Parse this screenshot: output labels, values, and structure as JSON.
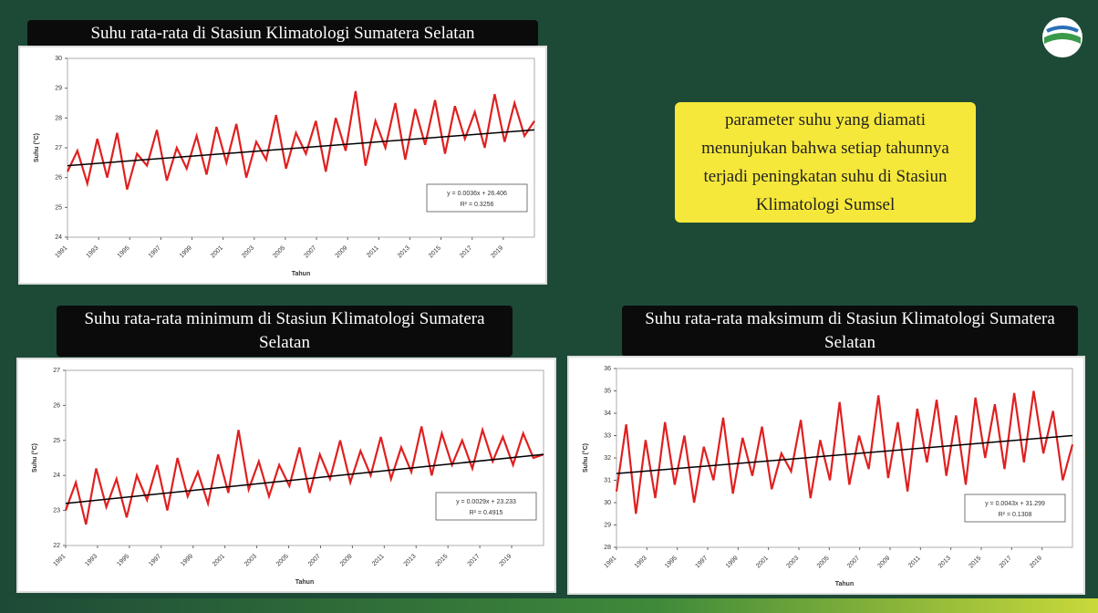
{
  "chart_data": [
    {
      "type": "line",
      "title": "Suhu rata-rata di Stasiun Klimatologi Sumatera Selatan",
      "ylabel": "Suhu (°C)",
      "xlabel": "Tahun",
      "color": "#e02020",
      "trend_color": "#000000",
      "trend": [
        26.4,
        27.6
      ],
      "equation": "y = 0.0036x + 26.406",
      "r2": "R² = 0.3256",
      "ylim": [
        24,
        30
      ],
      "yticks": [
        24,
        25,
        26,
        27,
        28,
        29,
        30
      ],
      "xlim": [
        1991,
        2021
      ],
      "xticks": [
        1991,
        1993,
        1995,
        1997,
        1999,
        2001,
        2003,
        2005,
        2007,
        2009,
        2011,
        2013,
        2015,
        2017,
        2019
      ],
      "values": [
        26.2,
        26.9,
        25.8,
        27.3,
        26.0,
        27.5,
        25.6,
        26.8,
        26.4,
        27.6,
        25.9,
        27.0,
        26.3,
        27.4,
        26.1,
        27.7,
        26.5,
        27.8,
        26.0,
        27.2,
        26.6,
        28.1,
        26.3,
        27.5,
        26.8,
        27.9,
        26.2,
        28.0,
        26.9,
        28.9,
        26.4,
        27.9,
        27.0,
        28.5,
        26.6,
        28.3,
        27.1,
        28.6,
        26.8,
        28.4,
        27.3,
        28.2,
        27.0,
        28.8,
        27.2,
        28.5,
        27.4,
        27.9
      ]
    },
    {
      "type": "line",
      "title": "Suhu rata-rata minimum di Stasiun Klimatologi Sumatera Selatan",
      "ylabel": "Suhu (°C)",
      "xlabel": "Tahun",
      "color": "#e02020",
      "trend_color": "#000000",
      "trend": [
        23.2,
        24.6
      ],
      "equation": "y = 0.0029x + 23.233",
      "r2": "R² = 0.4915",
      "ylim": [
        22,
        27
      ],
      "yticks": [
        22,
        23,
        24,
        25,
        26,
        27
      ],
      "xlim": [
        1991,
        2021
      ],
      "xticks": [
        1991,
        1993,
        1995,
        1997,
        1999,
        2001,
        2003,
        2005,
        2007,
        2009,
        2011,
        2013,
        2015,
        2017,
        2019
      ],
      "values": [
        23.0,
        23.8,
        22.6,
        24.2,
        23.1,
        23.9,
        22.8,
        24.0,
        23.3,
        24.3,
        23.0,
        24.5,
        23.4,
        24.1,
        23.2,
        24.6,
        23.5,
        25.3,
        23.6,
        24.4,
        23.4,
        24.3,
        23.7,
        24.8,
        23.5,
        24.6,
        23.9,
        25.0,
        23.8,
        24.7,
        24.0,
        25.1,
        23.9,
        24.8,
        24.1,
        25.4,
        24.0,
        25.2,
        24.3,
        25.0,
        24.2,
        25.3,
        24.4,
        25.1,
        24.3,
        25.2,
        24.5,
        24.6
      ]
    },
    {
      "type": "line",
      "title": "Suhu rata-rata maksimum di Stasiun Klimatologi Sumatera Selatan",
      "ylabel": "Suhu (°C)",
      "xlabel": "Tahun",
      "color": "#e02020",
      "trend_color": "#000000",
      "trend": [
        31.3,
        33.0
      ],
      "equation": "y = 0.0043x + 31.299",
      "r2": "R² = 0.1308",
      "ylim": [
        28,
        36
      ],
      "yticks": [
        28,
        29,
        30,
        31,
        32,
        33,
        34,
        35,
        36
      ],
      "xlim": [
        1991,
        2021
      ],
      "xticks": [
        1991,
        1993,
        1995,
        1997,
        1999,
        2001,
        2003,
        2005,
        2007,
        2009,
        2011,
        2013,
        2015,
        2017,
        2019
      ],
      "values": [
        30.5,
        33.5,
        29.5,
        32.8,
        30.2,
        33.6,
        30.8,
        33.0,
        30.0,
        32.5,
        31.0,
        33.8,
        30.4,
        32.9,
        31.2,
        33.4,
        30.6,
        32.2,
        31.4,
        33.7,
        30.2,
        32.8,
        31.0,
        34.5,
        30.8,
        33.0,
        31.5,
        34.8,
        31.1,
        33.6,
        30.5,
        34.2,
        31.8,
        34.6,
        31.2,
        33.9,
        30.8,
        34.7,
        32.0,
        34.4,
        31.5,
        34.9,
        31.8,
        35.0,
        32.2,
        34.1,
        31.0,
        32.6
      ]
    }
  ],
  "callout": "parameter suhu yang diamati menunjukan bahwa setiap tahunnya terjadi peningkatan suhu di Stasiun Klimatologi Sumsel"
}
